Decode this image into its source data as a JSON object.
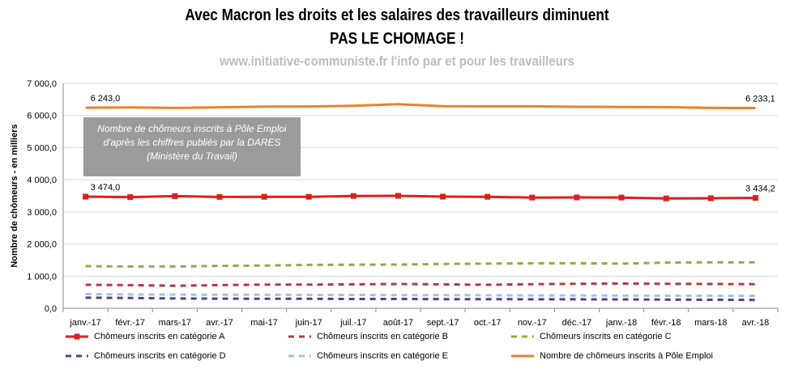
{
  "header": {
    "title_line1": "Avec Macron les droits et les salaires des travailleurs diminuent",
    "title_line2": "PAS LE CHOMAGE !",
    "subtitle": "www.initiative-communiste.fr l'info par et pour les travailleurs"
  },
  "annotation": "Nombre de chômeurs inscrits à Pôle Emploi  d'après les chiffres publiés par la DARES (Ministère du Travail)",
  "chart_data": {
    "type": "line",
    "ylabel": "Nombre de chômeurs - en milliers",
    "ylim": [
      0,
      7000
    ],
    "yticks": [
      "0,0",
      "1 000,0",
      "2 000,0",
      "3 000,0",
      "4 000,0",
      "5 000,0",
      "6 000,0",
      "7 000,0"
    ],
    "categories": [
      "janv.-17",
      "févr.-17",
      "mars-17",
      "avr.-17",
      "mai-17",
      "juin-17",
      "juil.-17",
      "août-17",
      "sept.-17",
      "oct.-17",
      "nov.-17",
      "déc.-17",
      "janv.-18",
      "févr.-18",
      "mars-18",
      "avr.-18"
    ],
    "grid": true,
    "legend_position": "bottom",
    "series": [
      {
        "name": "Nombre de chômeurs inscrits à Pôle Emploi",
        "color": "#e8832a",
        "style": "solid",
        "values": [
          6243.0,
          6250,
          6235,
          6255,
          6275,
          6280,
          6300,
          6350,
          6290,
          6285,
          6285,
          6270,
          6265,
          6260,
          6235,
          6233.1
        ],
        "first_label": "6 243,0",
        "last_label": "6 233,1"
      },
      {
        "name": "Chômeurs inscrits en catégorie A",
        "color": "#e01d1d",
        "style": "solid-marker",
        "values": [
          3474.0,
          3460,
          3490,
          3465,
          3470,
          3470,
          3495,
          3500,
          3475,
          3470,
          3445,
          3450,
          3445,
          3420,
          3425,
          3434.2
        ],
        "first_label": "3 474,0",
        "last_label": "3 434,2"
      },
      {
        "name": "Chômeurs inscrits en catégorie B",
        "color": "#b33a3a",
        "style": "dashed",
        "values": [
          730,
          720,
          700,
          720,
          735,
          735,
          745,
          755,
          745,
          730,
          750,
          760,
          770,
          760,
          755,
          750
        ]
      },
      {
        "name": "Chômeurs inscrits en catégorie C",
        "color": "#8cad4a",
        "style": "dashed",
        "values": [
          1310,
          1300,
          1300,
          1320,
          1330,
          1350,
          1355,
          1360,
          1380,
          1390,
          1400,
          1400,
          1390,
          1420,
          1430,
          1430
        ]
      },
      {
        "name": "Chômeurs inscrits en catégorie D",
        "color": "#5a3d80",
        "style": "dashed",
        "values": [
          330,
          320,
          305,
          300,
          295,
          295,
          290,
          290,
          285,
          285,
          280,
          280,
          275,
          270,
          265,
          260
        ]
      },
      {
        "name": "Chômeurs inscrits en catégorie E",
        "color": "#9fc6dc",
        "style": "dashed",
        "values": [
          440,
          430,
          425,
          420,
          420,
          415,
          415,
          410,
          410,
          405,
          400,
          400,
          395,
          390,
          390,
          385
        ]
      }
    ]
  }
}
